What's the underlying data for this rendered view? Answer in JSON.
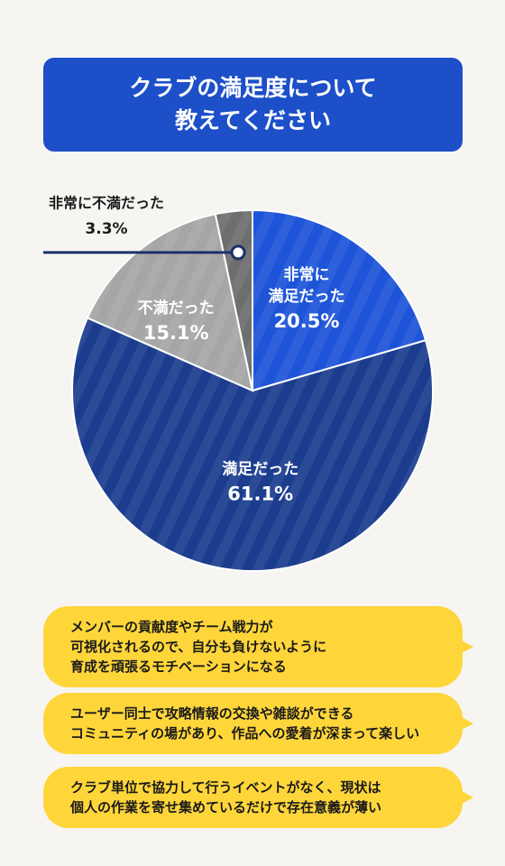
{
  "title": {
    "line1": "クラブの満足度について",
    "line2": "教えてください"
  },
  "chart_data": {
    "type": "pie",
    "start_angle_deg": 0,
    "direction": "clockwise",
    "slices": [
      {
        "label_lines": [
          "非常に",
          "満足だった"
        ],
        "value": 20.5,
        "value_label": "20.5%",
        "color": "#1e54d8"
      },
      {
        "label_lines": [
          "満足だった"
        ],
        "value": 61.1,
        "value_label": "61.1%",
        "color": "#1c3d8e"
      },
      {
        "label_lines": [
          "不満だった"
        ],
        "value": 15.1,
        "value_label": "15.1%",
        "color": "#a6a6a6"
      },
      {
        "label_lines": [
          "非常に不満だった"
        ],
        "value": 3.3,
        "value_label": "3.3%",
        "color": "#6e6e6e"
      }
    ]
  },
  "comments": [
    {
      "lines": [
        "メンバーの貢献度やチーム戦力が",
        "可視化されるので、自分も負けないように",
        "育成を頑張るモチベーションになる"
      ]
    },
    {
      "lines": [
        "ユーザー同士で攻略情報の交換や雑談ができる",
        "コミュニティの場があり、作品への愛着が深まって楽しい"
      ]
    },
    {
      "lines": [
        "クラブ単位で協力して行うイベントがなく、現状は",
        "個人の作業を寄せ集めているだけで存在意義が薄い"
      ]
    }
  ]
}
